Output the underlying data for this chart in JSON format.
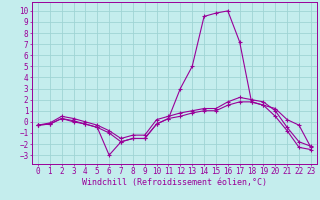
{
  "xlabel": "Windchill (Refroidissement éolien,°C)",
  "xlim": [
    -0.5,
    23.5
  ],
  "ylim": [
    -3.8,
    10.8
  ],
  "xticks": [
    0,
    1,
    2,
    3,
    4,
    5,
    6,
    7,
    8,
    9,
    10,
    11,
    12,
    13,
    14,
    15,
    16,
    17,
    18,
    19,
    20,
    21,
    22,
    23
  ],
  "yticks": [
    -3,
    -2,
    -1,
    0,
    1,
    2,
    3,
    4,
    5,
    6,
    7,
    8,
    9,
    10
  ],
  "bg_color": "#c4eded",
  "grid_color": "#a0d4d4",
  "line_color": "#990099",
  "line1_x": [
    0,
    1,
    2,
    3,
    4,
    5,
    6,
    7,
    8,
    9,
    10,
    11,
    12,
    13,
    14,
    15,
    16,
    17,
    18,
    19,
    20,
    21,
    22,
    23
  ],
  "line1_y": [
    -0.3,
    -0.2,
    0.3,
    0.1,
    -0.2,
    -0.5,
    -1.0,
    -1.8,
    -1.5,
    -1.5,
    -0.2,
    0.3,
    3.0,
    5.0,
    9.5,
    9.8,
    10.0,
    7.2,
    1.8,
    1.5,
    1.2,
    0.2,
    -0.3,
    -2.3
  ],
  "line2_x": [
    0,
    1,
    2,
    3,
    4,
    5,
    6,
    7,
    8,
    9,
    10,
    11,
    12,
    13,
    14,
    15,
    16,
    17,
    18,
    19,
    20,
    21,
    22,
    23
  ],
  "line2_y": [
    -0.3,
    -0.2,
    0.3,
    0.0,
    -0.2,
    -0.5,
    -3.0,
    -1.8,
    -1.5,
    -1.5,
    -0.2,
    0.3,
    0.5,
    0.8,
    1.0,
    1.0,
    1.5,
    1.8,
    1.8,
    1.5,
    0.5,
    -0.8,
    -2.3,
    -2.5
  ],
  "line3_x": [
    0,
    1,
    2,
    3,
    4,
    5,
    6,
    7,
    8,
    9,
    10,
    11,
    12,
    13,
    14,
    15,
    16,
    17,
    18,
    19,
    20,
    21,
    22,
    23
  ],
  "line3_y": [
    -0.3,
    -0.1,
    0.5,
    0.3,
    0.0,
    -0.3,
    -0.8,
    -1.5,
    -1.2,
    -1.2,
    0.2,
    0.5,
    0.8,
    1.0,
    1.2,
    1.2,
    1.8,
    2.2,
    2.0,
    1.8,
    1.0,
    -0.5,
    -1.8,
    -2.2
  ],
  "xlabel_fontsize": 6,
  "tick_fontsize": 5.5
}
